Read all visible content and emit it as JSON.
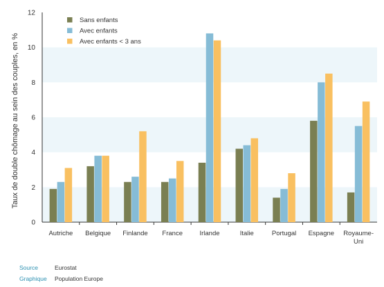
{
  "chart_data": {
    "type": "bar",
    "title": "",
    "ylabel": "Taux de double chômage au sein des couples, en %",
    "xlabel": "",
    "ylim": [
      0,
      12
    ],
    "yticks": [
      0,
      2,
      4,
      6,
      8,
      10,
      12
    ],
    "legend_position": "top-left",
    "categories": [
      [
        "Autriche"
      ],
      [
        "Belgique"
      ],
      [
        "Finlande"
      ],
      [
        "France"
      ],
      [
        "Irlande"
      ],
      [
        "Italie"
      ],
      [
        "Portugal"
      ],
      [
        "Espagne"
      ],
      [
        "Royaume-",
        "Uni"
      ]
    ],
    "series": [
      {
        "name": "Sans enfants",
        "color": "#7a7f52",
        "values": [
          1.9,
          3.2,
          2.3,
          2.3,
          3.4,
          4.2,
          1.4,
          5.8,
          1.7
        ]
      },
      {
        "name": "Avec enfants",
        "color": "#86bcd6",
        "values": [
          2.3,
          3.8,
          2.6,
          2.5,
          10.8,
          4.4,
          1.9,
          8.0,
          5.5
        ]
      },
      {
        "name": "Avec enfants < 3 ans",
        "color": "#f9c061",
        "values": [
          3.1,
          3.8,
          5.2,
          3.5,
          10.4,
          4.8,
          2.8,
          8.5,
          6.9
        ]
      }
    ]
  },
  "footer": {
    "source_label": "Source",
    "source_value": "Eurostat",
    "graphic_label": "Graphique",
    "graphic_value": "Population Europe"
  }
}
